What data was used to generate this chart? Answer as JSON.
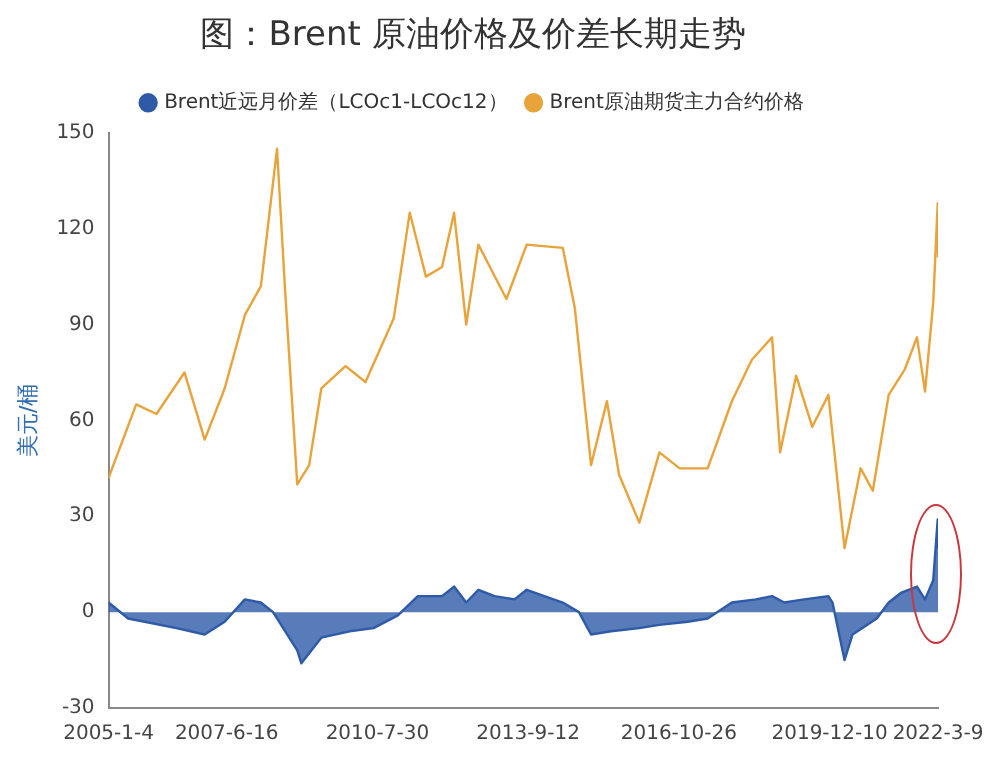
{
  "chart_data": {
    "type": "line",
    "title": "图：Brent 原油价格及价差长期走势",
    "ylabel": "美元/桶",
    "legend": "top",
    "grid": false,
    "ylim": [
      -30,
      150
    ],
    "yticks": [
      -30,
      0,
      30,
      60,
      90,
      120,
      150
    ],
    "xlim": [
      "2005-01-04",
      "2022-03-09"
    ],
    "xticks": [
      {
        "value": "2005-01-04",
        "label": "2005-1-4"
      },
      {
        "value": "2007-06-16",
        "label": "2007-6-16"
      },
      {
        "value": "2010-07-30",
        "label": "2010-7-30"
      },
      {
        "value": "2013-09-12",
        "label": "2013-9-12"
      },
      {
        "value": "2016-10-26",
        "label": "2016-10-26"
      },
      {
        "value": "2019-12-10",
        "label": "2019-12-10"
      },
      {
        "value": "2022-03-09",
        "label": "2022-3-9"
      }
    ],
    "series": [
      {
        "name": "Brent近远月价差（LCOc1-LCOc12）",
        "type": "area",
        "color": "#2e5aa8",
        "x": [
          "2005-01-04",
          "2005-06",
          "2006-06",
          "2007-01",
          "2007-06",
          "2007-11",
          "2008-03",
          "2008-06",
          "2008-12",
          "2009-01",
          "2009-06",
          "2010-01",
          "2010-07",
          "2011-01",
          "2011-06",
          "2011-12",
          "2012-03",
          "2012-06",
          "2012-09",
          "2013-01",
          "2013-06",
          "2013-09",
          "2014-06",
          "2014-10",
          "2015-01",
          "2015-06",
          "2016-01",
          "2016-06",
          "2017-01",
          "2017-06",
          "2017-12",
          "2018-06",
          "2018-10",
          "2019-01",
          "2019-06",
          "2019-12",
          "2020-01",
          "2020-04",
          "2020-06",
          "2020-12",
          "2021-03",
          "2021-06",
          "2021-10",
          "2021-12",
          "2022-02",
          "2022-03-07",
          "2022-03-09"
        ],
        "values": [
          3,
          -2,
          -5,
          -7,
          -3,
          4,
          3,
          0,
          -12,
          -16,
          -8,
          -6,
          -5,
          -1,
          5,
          5,
          8,
          3,
          7,
          5,
          4,
          7,
          3,
          0,
          -7,
          -6,
          -5,
          -4,
          -3,
          -2,
          3,
          4,
          5,
          3,
          4,
          5,
          3,
          -15,
          -7,
          -2,
          3,
          6,
          8,
          4,
          10,
          29,
          20
        ]
      },
      {
        "name": "Brent原油期货主力合约价格",
        "type": "line",
        "color": "#e8a33a",
        "x": [
          "2005-01-04",
          "2005-08",
          "2006-01",
          "2006-08",
          "2007-01",
          "2007-06",
          "2007-11",
          "2008-03",
          "2008-07",
          "2008-09",
          "2008-12",
          "2009-03",
          "2009-06",
          "2009-12",
          "2010-05",
          "2010-12",
          "2011-04",
          "2011-08",
          "2011-12",
          "2012-03",
          "2012-06",
          "2012-09",
          "2013-04",
          "2013-09",
          "2014-06",
          "2014-09",
          "2015-01",
          "2015-05",
          "2015-08",
          "2016-01",
          "2016-06",
          "2016-11",
          "2017-06",
          "2017-12",
          "2018-05",
          "2018-10",
          "2018-12",
          "2019-04",
          "2019-08",
          "2019-12",
          "2020-04",
          "2020-08",
          "2020-11",
          "2021-03",
          "2021-07",
          "2021-10",
          "2021-12",
          "2022-02",
          "2022-03-07",
          "2022-03-09"
        ],
        "values": [
          42,
          65,
          62,
          75,
          54,
          70,
          93,
          102,
          145,
          100,
          40,
          46,
          70,
          77,
          72,
          92,
          125,
          105,
          108,
          125,
          90,
          115,
          98,
          115,
          114,
          95,
          46,
          66,
          43,
          28,
          50,
          45,
          45,
          66,
          79,
          86,
          50,
          74,
          58,
          68,
          20,
          45,
          38,
          68,
          76,
          86,
          69,
          97,
          128,
          111
        ]
      }
    ]
  }
}
